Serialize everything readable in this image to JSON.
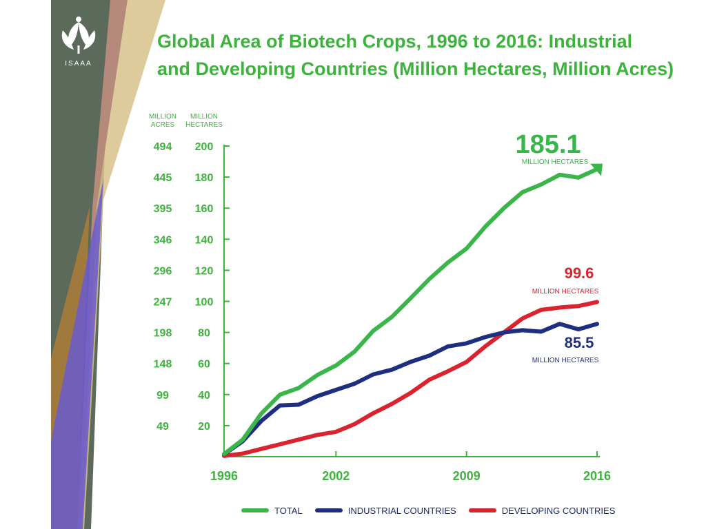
{
  "logo": {
    "text": "ISAAA",
    "icon": "isaaa-leaf-logo-icon"
  },
  "title": {
    "line1": "Global Area of Biotech Crops, 1996 to 2016: Industrial",
    "line2": "and Developing Countries (Million Hectares, Million Acres)"
  },
  "colors": {
    "total": "#3ab54a",
    "industrial": "#1f2f80",
    "developing": "#d9232e",
    "accent": "#3db33d"
  },
  "chart_data": {
    "type": "line",
    "ylabel_acres": "MILLION ACRES",
    "ylabel_hectares": "MILLION HECTARES",
    "ylim": [
      0,
      200
    ],
    "y_ticks_hectares": [
      20,
      40,
      60,
      80,
      100,
      120,
      140,
      160,
      180,
      200
    ],
    "y_ticks_acres": [
      49,
      99,
      148,
      198,
      247,
      296,
      346,
      395,
      445,
      494
    ],
    "x_ticks": [
      1996,
      2002,
      2009,
      2016
    ],
    "x": [
      1996,
      1997,
      1998,
      1999,
      2000,
      2001,
      2002,
      2003,
      2004,
      2005,
      2006,
      2007,
      2008,
      2009,
      2010,
      2011,
      2012,
      2013,
      2014,
      2015,
      2016
    ],
    "series": [
      {
        "name": "TOTAL",
        "color": "#3ab54a",
        "values": [
          1.7,
          11,
          27.8,
          39.9,
          44.2,
          52.6,
          58.7,
          67.7,
          81,
          90,
          102,
          114.3,
          125,
          134,
          148,
          160,
          170.3,
          175.2,
          181.5,
          179.7,
          185.1
        ]
      },
      {
        "name": "INDUSTRIAL COUNTRIES",
        "color": "#1f2f80",
        "values": [
          1.5,
          10,
          23,
          33,
          33.5,
          39,
          43,
          47,
          53,
          56,
          61,
          65,
          71,
          73,
          77,
          80,
          81.4,
          80.5,
          85.5,
          82,
          85.5
        ]
      },
      {
        "name": "DEVELOPING COUNTRIES",
        "color": "#d9232e",
        "values": [
          0.5,
          2,
          5,
          8,
          11,
          14,
          16,
          21,
          28,
          34,
          41,
          49.5,
          55,
          61,
          71,
          80,
          89,
          94.5,
          96,
          97,
          99.6
        ]
      }
    ],
    "annotations": [
      {
        "value": "185.1",
        "unit": "MILLION HECTARES",
        "series": "TOTAL"
      },
      {
        "value": "99.6",
        "unit": "MILLION HECTARES",
        "series": "DEVELOPING COUNTRIES"
      },
      {
        "value": "85.5",
        "unit": "MILLION HECTARES",
        "series": "INDUSTRIAL COUNTRIES"
      }
    ],
    "legend_position": "bottom"
  }
}
